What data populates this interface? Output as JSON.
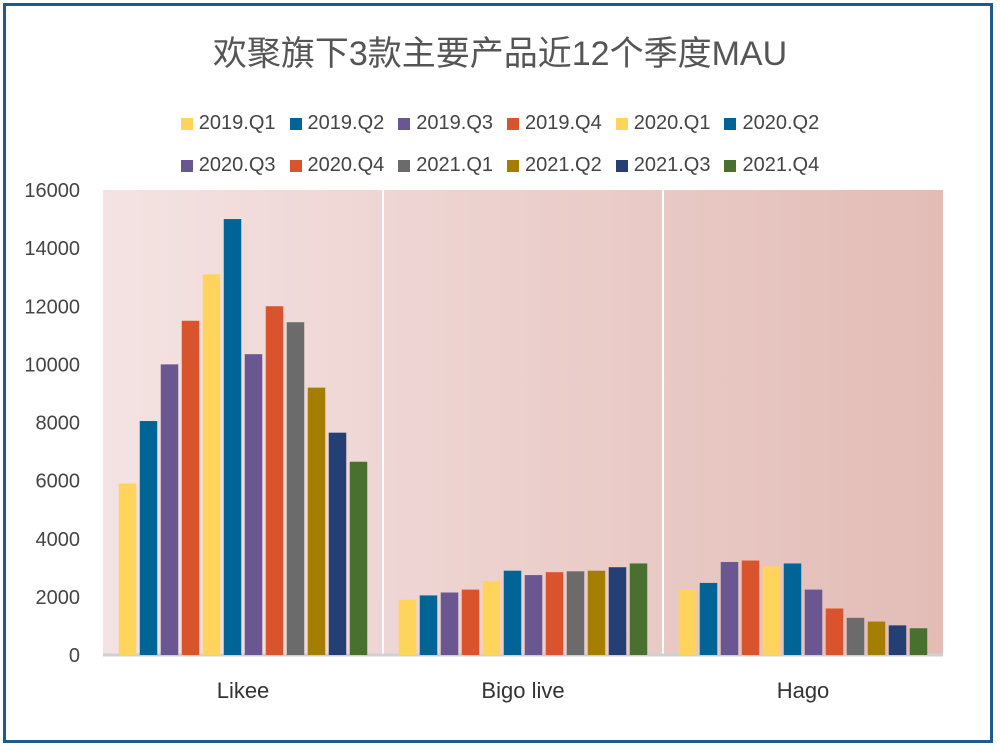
{
  "chart_data": {
    "type": "bar",
    "title": "欢聚旗下3款主要产品近12个季度MAU",
    "categories": [
      "Likee",
      "Bigo live",
      "Hago"
    ],
    "ylim": [
      0,
      16000
    ],
    "yticks": [
      "0",
      "2000",
      "4000",
      "6000",
      "8000",
      "10000",
      "12000",
      "14000",
      "16000"
    ],
    "legend_position": "top",
    "series": [
      {
        "name": "2019.Q1",
        "color": "#ffd45a",
        "values": [
          5900,
          1900,
          2250
        ]
      },
      {
        "name": "2019.Q2",
        "color": "#006496",
        "values": [
          8050,
          2050,
          2480
        ]
      },
      {
        "name": "2019.Q3",
        "color": "#6a5690",
        "values": [
          10000,
          2150,
          3200
        ]
      },
      {
        "name": "2019.Q4",
        "color": "#d9532c",
        "values": [
          11500,
          2250,
          3250
        ]
      },
      {
        "name": "2020.Q1",
        "color": "#ffd45a",
        "values": [
          13100,
          2550,
          3050
        ]
      },
      {
        "name": "2020.Q2",
        "color": "#006496",
        "values": [
          15000,
          2900,
          3150
        ]
      },
      {
        "name": "2020.Q3",
        "color": "#6a5690",
        "values": [
          10350,
          2750,
          2250
        ]
      },
      {
        "name": "2020.Q4",
        "color": "#d9532c",
        "values": [
          12000,
          2850,
          1600
        ]
      },
      {
        "name": "2021.Q1",
        "color": "#6b6b6b",
        "values": [
          11450,
          2880,
          1280
        ]
      },
      {
        "name": "2021.Q2",
        "color": "#a37e00",
        "values": [
          9200,
          2900,
          1150
        ]
      },
      {
        "name": "2021.Q3",
        "color": "#243f74",
        "values": [
          7650,
          3020,
          1020
        ]
      },
      {
        "name": "2021.Q4",
        "color": "#4a7030",
        "values": [
          6650,
          3150,
          920
        ]
      }
    ]
  }
}
